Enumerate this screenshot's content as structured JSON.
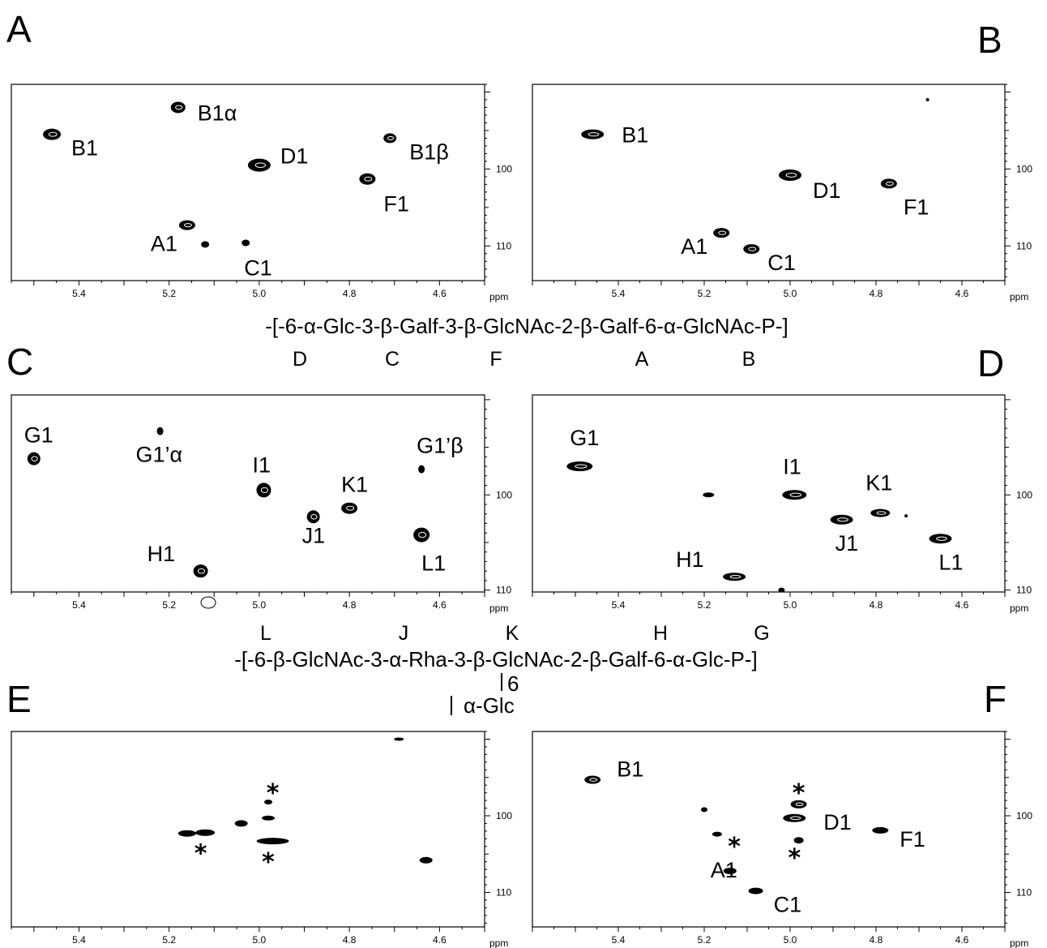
{
  "structure_1": {
    "formula": "-[-6-α-Glc-3-β-Galf-3-β-GlcNAc-2-β-Galf-6-α-GlcNAc-P-]",
    "residue_codes": [
      "D",
      "C",
      "F",
      "A",
      "B"
    ]
  },
  "structure_2": {
    "residue_codes": [
      "L",
      "J",
      "K",
      "H",
      "G"
    ],
    "formula": "-[-6-β-GlcNAc-3-α-Rha-3-β-GlcNAc-2-β-Galf-6-α-Glc-P-]",
    "branch_position": "6",
    "branch_residue": "α-Glc"
  },
  "chart_data": [
    {
      "panel": "A",
      "type": "scatter",
      "xlabel": "ppm",
      "xticks": [
        5.4,
        5.2,
        5.0,
        4.8,
        4.6
      ],
      "yticks": [
        100,
        110
      ],
      "xlim": [
        5.55,
        4.5
      ],
      "ylim": [
        89,
        114.5
      ],
      "points": [
        {
          "label": "B1",
          "x": 5.46,
          "y": 95.5
        },
        {
          "label": "B1α",
          "x": 5.18,
          "y": 92.0
        },
        {
          "label": "B1β",
          "x": 4.71,
          "y": 96.0
        },
        {
          "label": "D1",
          "x": 5.0,
          "y": 99.5
        },
        {
          "label": "F1",
          "x": 4.76,
          "y": 101.3
        },
        {
          "label": "A1",
          "x": 5.16,
          "y": 107.3
        },
        {
          "label": "C1",
          "x": 5.03,
          "y": 109.6
        },
        {
          "label": "",
          "x": 5.12,
          "y": 109.8
        }
      ]
    },
    {
      "panel": "B",
      "type": "scatter",
      "xlabel": "ppm",
      "xticks": [
        5.4,
        5.2,
        5.0,
        4.8,
        4.6
      ],
      "yticks": [
        100,
        110
      ],
      "xlim": [
        5.6,
        4.5
      ],
      "ylim": [
        89,
        114.5
      ],
      "points": [
        {
          "label": "B1",
          "x": 5.46,
          "y": 95.5
        },
        {
          "label": "D1",
          "x": 5.0,
          "y": 100.8
        },
        {
          "label": "F1",
          "x": 4.77,
          "y": 101.9
        },
        {
          "label": "A1",
          "x": 5.16,
          "y": 108.3
        },
        {
          "label": "C1",
          "x": 5.09,
          "y": 110.4
        },
        {
          "label": "",
          "x": 4.68,
          "y": 91.0
        }
      ]
    },
    {
      "panel": "C",
      "type": "scatter",
      "xlabel": "ppm",
      "xticks": [
        5.4,
        5.2,
        5.0,
        4.8,
        4.6
      ],
      "yticks": [
        100,
        110
      ],
      "xlim": [
        5.55,
        4.5
      ],
      "ylim": [
        89.5,
        110.2
      ],
      "points": [
        {
          "label": "G1",
          "x": 5.5,
          "y": 96.2
        },
        {
          "label": "G1’α",
          "x": 5.22,
          "y": 93.3
        },
        {
          "label": "I1",
          "x": 4.99,
          "y": 99.5
        },
        {
          "label": "J1",
          "x": 4.88,
          "y": 102.3
        },
        {
          "label": "K1",
          "x": 4.8,
          "y": 101.4
        },
        {
          "label": "G1’β",
          "x": 4.64,
          "y": 97.3
        },
        {
          "label": "L1",
          "x": 4.64,
          "y": 104.2
        },
        {
          "label": "H1",
          "x": 5.13,
          "y": 108.0
        }
      ]
    },
    {
      "panel": "D",
      "type": "scatter",
      "xlabel": "ppm",
      "xticks": [
        5.4,
        5.2,
        5.0,
        4.8,
        4.6
      ],
      "yticks": [
        100,
        110
      ],
      "xlim": [
        5.6,
        4.5
      ],
      "ylim": [
        89.5,
        110.2
      ],
      "points": [
        {
          "label": "G1",
          "x": 5.49,
          "y": 97.0
        },
        {
          "label": "I1",
          "x": 4.99,
          "y": 100.0
        },
        {
          "label": "K1",
          "x": 4.79,
          "y": 101.9
        },
        {
          "label": "J1",
          "x": 4.88,
          "y": 102.6
        },
        {
          "label": "L1",
          "x": 4.65,
          "y": 104.6
        },
        {
          "label": "H1",
          "x": 5.13,
          "y": 108.6
        },
        {
          "label": "",
          "x": 5.19,
          "y": 100.0
        },
        {
          "label": "",
          "x": 5.02,
          "y": 110.0
        },
        {
          "label": "",
          "x": 4.73,
          "y": 102.2
        }
      ]
    },
    {
      "panel": "E",
      "type": "scatter",
      "xlabel": "ppm",
      "xticks": [
        5.4,
        5.2,
        5.0,
        4.8,
        4.6
      ],
      "yticks": [
        100,
        110
      ],
      "xlim": [
        5.55,
        4.5
      ],
      "ylim": [
        89,
        114.5
      ],
      "points": [
        {
          "label": "",
          "x": 5.12,
          "y": 102.2
        },
        {
          "label": "",
          "x": 5.16,
          "y": 102.3
        },
        {
          "label": "",
          "x": 5.04,
          "y": 101.0
        },
        {
          "label": "",
          "x": 4.98,
          "y": 100.3
        },
        {
          "label": "",
          "x": 4.98,
          "y": 98.2
        },
        {
          "label": "",
          "x": 4.97,
          "y": 103.3
        },
        {
          "label": "",
          "x": 4.63,
          "y": 105.8
        },
        {
          "label": "",
          "x": 4.69,
          "y": 90.0
        }
      ],
      "annotations": [
        "*",
        "*",
        "*"
      ]
    },
    {
      "panel": "F",
      "type": "scatter",
      "xlabel": "ppm",
      "xticks": [
        5.4,
        5.2,
        5.0,
        4.8,
        4.6
      ],
      "yticks": [
        100,
        110
      ],
      "xlim": [
        5.6,
        4.5
      ],
      "ylim": [
        89,
        114.5
      ],
      "points": [
        {
          "label": "B1",
          "x": 5.46,
          "y": 95.3
        },
        {
          "label": "D1",
          "x": 4.99,
          "y": 100.3
        },
        {
          "label": "F1",
          "x": 4.79,
          "y": 101.9
        },
        {
          "label": "A1",
          "x": 5.14,
          "y": 107.2
        },
        {
          "label": "C1",
          "x": 5.08,
          "y": 109.8
        },
        {
          "label": "",
          "x": 4.98,
          "y": 98.5
        },
        {
          "label": "",
          "x": 4.98,
          "y": 103.2
        },
        {
          "label": "",
          "x": 5.17,
          "y": 102.4
        },
        {
          "label": "",
          "x": 5.2,
          "y": 99.2
        }
      ],
      "annotations": [
        "*",
        "*",
        "*"
      ]
    }
  ]
}
